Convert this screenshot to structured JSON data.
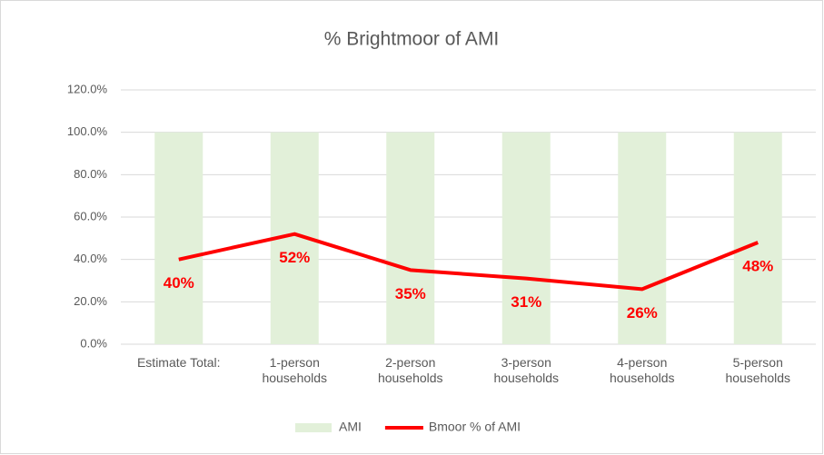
{
  "chart_data": {
    "type": "combo",
    "title": "% Brightmoor of AMI",
    "categories": [
      "Estimate Total:",
      "1-person households",
      "2-person households",
      "3-person households",
      "4-person households",
      "5-person households"
    ],
    "series": [
      {
        "name": "AMI",
        "type": "bar",
        "color": "#e2f0d9",
        "values": [
          100,
          100,
          100,
          100,
          100,
          100
        ]
      },
      {
        "name": "Bmoor % of AMI",
        "type": "line",
        "color": "#ff0000",
        "values": [
          40,
          52,
          35,
          31,
          26,
          48
        ],
        "value_labels": [
          "40%",
          "52%",
          "35%",
          "31%",
          "26%",
          "48%"
        ]
      }
    ],
    "ylim": [
      0,
      120
    ],
    "yticks": [
      {
        "value": 0,
        "label": "0.0%"
      },
      {
        "value": 20,
        "label": "20.0%"
      },
      {
        "value": 40,
        "label": "40.0%"
      },
      {
        "value": 60,
        "label": "60.0%"
      },
      {
        "value": 80,
        "label": "80.0%"
      },
      {
        "value": 100,
        "label": "100.0%"
      },
      {
        "value": 120,
        "label": "120.0%"
      }
    ],
    "grid": true,
    "legend": "bottom"
  }
}
